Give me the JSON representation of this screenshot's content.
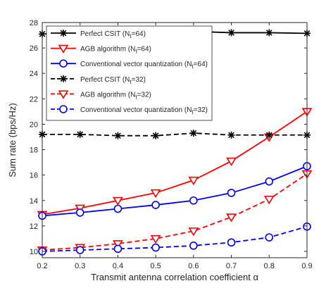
{
  "chart_data": {
    "type": "line",
    "title": "",
    "xlabel": "Transmit antenna correlation coefficient α",
    "ylabel": "Sum rate (bps/Hz)",
    "xlim": [
      0.2,
      0.9
    ],
    "ylim": [
      9.5,
      28
    ],
    "x": [
      0.2,
      0.3,
      0.4,
      0.5,
      0.6,
      0.7,
      0.8,
      0.9
    ],
    "x_ticks": [
      "0.2",
      "0.3",
      "0.4",
      "0.5",
      "0.6",
      "0.7",
      "0.8",
      "0.9"
    ],
    "y_ticks": [
      "10",
      "12",
      "14",
      "16",
      "18",
      "20",
      "22",
      "24",
      "26",
      "28"
    ],
    "grid": false,
    "legend_position": "top-left",
    "series": [
      {
        "name": "Perfect CSIT (N_t=64)",
        "color": "#000000",
        "line": "solid",
        "marker": "asterisk",
        "values": [
          27.1,
          27.15,
          27.3,
          27.2,
          27.3,
          27.2,
          27.2,
          27.15
        ]
      },
      {
        "name": "AGB algorithm (N_t=64)",
        "color": "#ff0000",
        "line": "solid",
        "marker": "triangle-down",
        "values": [
          12.9,
          13.4,
          14.0,
          14.6,
          15.6,
          17.1,
          19.0,
          21.0
        ]
      },
      {
        "name": "Conventional vector quantization (N_t=64)",
        "color": "#0000ff",
        "line": "solid",
        "marker": "circle",
        "values": [
          12.8,
          13.05,
          13.35,
          13.65,
          14.0,
          14.6,
          15.5,
          16.7
        ]
      },
      {
        "name": "Perfect CSIT (N_t=32)",
        "color": "#000000",
        "line": "dashed",
        "marker": "asterisk",
        "values": [
          19.2,
          19.2,
          19.1,
          19.1,
          19.3,
          19.15,
          19.15,
          19.15
        ]
      },
      {
        "name": "AGB algorithm (N_t=32)",
        "color": "#ff0000",
        "line": "dashed",
        "marker": "triangle-down",
        "values": [
          10.1,
          10.3,
          10.6,
          11.0,
          11.6,
          12.7,
          14.1,
          16.1
        ]
      },
      {
        "name": "Conventional vector quantization (N_t=32)",
        "color": "#0000ff",
        "line": "dashed",
        "marker": "circle",
        "values": [
          10.0,
          10.1,
          10.2,
          10.3,
          10.45,
          10.7,
          11.1,
          11.95
        ]
      }
    ]
  }
}
